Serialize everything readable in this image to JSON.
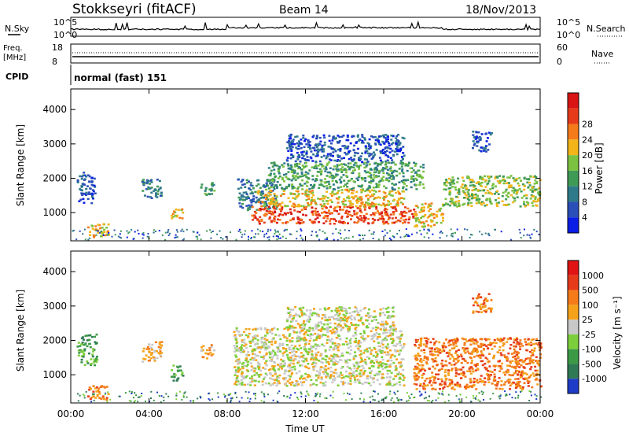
{
  "header": {
    "radar": "Stokkseyri (fitACF)",
    "beam": "Beam 14",
    "date": "18/Nov/2013"
  },
  "summary_panels": {
    "nsky_label": "N.Sky",
    "nsearch_label": "N.Search",
    "noise_tick_high": "10^5",
    "noise_tick_low": "10^0",
    "freq_label": "Freq.",
    "freq_unit": "[MHz]",
    "freq_ticks": [
      "18",
      "8"
    ],
    "nave_label": "Nave",
    "nave_ticks": [
      "60",
      "0"
    ],
    "cpid_label": "CPID",
    "cpid_value": "normal (fast) 151"
  },
  "chart_data": [
    {
      "type": "heatmap",
      "panel": "power",
      "ylabel": "Slant Range [km]",
      "yticks": [
        "1000",
        "2000",
        "3000",
        "4000"
      ],
      "ylim": [
        180,
        4600
      ],
      "xlim": [
        "00:00",
        "24:00"
      ],
      "colorbar_label": "Power [dB]",
      "colorbar_ticks": [
        "4",
        "8",
        "12",
        "16",
        "20",
        "24",
        "28"
      ],
      "colorbar_colors": [
        "#0a1ee6",
        "#2b4fb8",
        "#2f7a8a",
        "#3f9a55",
        "#7cc241",
        "#f2b418",
        "#f57a1a",
        "#e63a1a",
        "#d81414"
      ],
      "patches": [
        {
          "t0": 0.3,
          "t1": 1.2,
          "r0": 1300,
          "r1": 2200,
          "level": 1
        },
        {
          "t0": 0.8,
          "t1": 1.9,
          "r0": 300,
          "r1": 700,
          "level": 5
        },
        {
          "t0": 3.6,
          "t1": 4.6,
          "r0": 1400,
          "r1": 2000,
          "level": 2
        },
        {
          "t0": 5.1,
          "t1": 5.7,
          "r0": 850,
          "r1": 1200,
          "level": 5
        },
        {
          "t0": 6.6,
          "t1": 7.3,
          "r0": 1500,
          "r1": 1900,
          "level": 3
        },
        {
          "t0": 8.5,
          "t1": 10.5,
          "r0": 1100,
          "r1": 2000,
          "level": 2
        },
        {
          "t0": 9.2,
          "t1": 17.5,
          "r0": 700,
          "r1": 1200,
          "level": 7
        },
        {
          "t0": 9.5,
          "t1": 17.0,
          "r0": 1200,
          "r1": 1700,
          "level": 5
        },
        {
          "t0": 10.0,
          "t1": 18.0,
          "r0": 1700,
          "r1": 2500,
          "level": 3
        },
        {
          "t0": 11.0,
          "t1": 17.0,
          "r0": 2500,
          "r1": 3300,
          "level": 1
        },
        {
          "t0": 17.5,
          "t1": 19.0,
          "r0": 600,
          "r1": 1300,
          "level": 5
        },
        {
          "t0": 19.0,
          "t1": 24.0,
          "r0": 1200,
          "r1": 2100,
          "level": 4
        },
        {
          "t0": 20.5,
          "t1": 21.5,
          "r0": 2800,
          "r1": 3400,
          "level": 1
        }
      ]
    },
    {
      "type": "heatmap",
      "panel": "velocity",
      "ylabel": "Slant Range [km]",
      "yticks": [
        "1000",
        "2000",
        "3000",
        "4000"
      ],
      "ylim": [
        180,
        4600
      ],
      "xlim": [
        "00:00",
        "24:00"
      ],
      "xticks": [
        "00:00",
        "04:00",
        "08:00",
        "12:00",
        "16:00",
        "20:00",
        "00:00"
      ],
      "xlabel": "Time UT",
      "colorbar_label": "Velocity [m s⁻¹]",
      "colorbar_ticks": [
        "1000",
        "500",
        "100",
        "25",
        "-25",
        "-100",
        "-500",
        "-1000"
      ],
      "colorbar_colors": [
        "#1e3cc8",
        "#2f7a55",
        "#3c9a46",
        "#7ccf3a",
        "#c8c8c8",
        "#f5a21a",
        "#f57a1a",
        "#e63a1a",
        "#e01414"
      ],
      "patches": [
        {
          "t0": 0.3,
          "t1": 1.3,
          "r0": 1300,
          "r1": 2200,
          "level": 2
        },
        {
          "t0": 0.8,
          "t1": 1.9,
          "r0": 300,
          "r1": 700,
          "level": 6
        },
        {
          "t0": 3.6,
          "t1": 4.6,
          "r0": 1400,
          "r1": 2000,
          "level": 5
        },
        {
          "t0": 5.1,
          "t1": 5.7,
          "r0": 850,
          "r1": 1300,
          "level": 2
        },
        {
          "t0": 6.6,
          "t1": 7.3,
          "r0": 1500,
          "r1": 1900,
          "level": 5
        },
        {
          "t0": 8.3,
          "t1": 17.0,
          "r0": 700,
          "r1": 2400,
          "level": 4
        },
        {
          "t0": 11.0,
          "t1": 16.5,
          "r0": 2400,
          "r1": 3000,
          "level": 4
        },
        {
          "t0": 17.5,
          "t1": 24.0,
          "r0": 600,
          "r1": 2100,
          "level": 6
        },
        {
          "t0": 20.5,
          "t1": 21.5,
          "r0": 2800,
          "r1": 3400,
          "level": 6
        }
      ]
    }
  ]
}
